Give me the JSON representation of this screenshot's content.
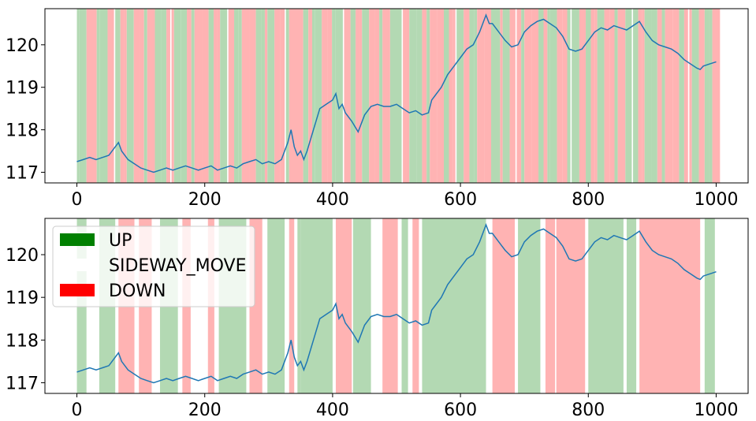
{
  "chart_data": [
    {
      "type": "line",
      "xlim": [
        -50,
        1050
      ],
      "ylim": [
        116.75,
        120.85
      ],
      "xticks": [
        0,
        200,
        400,
        600,
        800,
        1000
      ],
      "yticks": [
        117,
        118,
        119,
        120
      ],
      "xtick_labels": [
        "0",
        "200",
        "400",
        "600",
        "800",
        "1000"
      ],
      "ytick_labels": [
        "117",
        "118",
        "119",
        "120"
      ],
      "background_regions": "dense alternating red / green spans covering 0–1000",
      "series": [
        {
          "color": "#1f77b4",
          "x": [
            0,
            10,
            20,
            30,
            40,
            50,
            60,
            65,
            70,
            80,
            90,
            100,
            110,
            120,
            130,
            140,
            150,
            160,
            170,
            180,
            190,
            200,
            210,
            220,
            230,
            240,
            250,
            260,
            270,
            280,
            290,
            300,
            310,
            320,
            330,
            335,
            340,
            345,
            350,
            355,
            360,
            370,
            380,
            390,
            400,
            405,
            410,
            415,
            420,
            430,
            440,
            450,
            460,
            470,
            480,
            490,
            500,
            510,
            520,
            530,
            540,
            550,
            555,
            560,
            570,
            580,
            590,
            600,
            610,
            620,
            630,
            640,
            645,
            650,
            660,
            670,
            680,
            690,
            700,
            710,
            720,
            730,
            740,
            750,
            760,
            770,
            780,
            790,
            800,
            810,
            820,
            830,
            840,
            850,
            860,
            870,
            880,
            890,
            900,
            910,
            920,
            930,
            940,
            950,
            960,
            970,
            975,
            980,
            990,
            1000
          ],
          "y": [
            117.25,
            117.3,
            117.35,
            117.3,
            117.35,
            117.4,
            117.6,
            117.7,
            117.5,
            117.3,
            117.2,
            117.1,
            117.05,
            117.0,
            117.05,
            117.1,
            117.05,
            117.1,
            117.15,
            117.1,
            117.05,
            117.1,
            117.15,
            117.05,
            117.1,
            117.15,
            117.1,
            117.2,
            117.25,
            117.3,
            117.2,
            117.25,
            117.2,
            117.3,
            117.7,
            118.0,
            117.6,
            117.4,
            117.5,
            117.3,
            117.5,
            118.0,
            118.5,
            118.6,
            118.7,
            118.85,
            118.5,
            118.6,
            118.4,
            118.2,
            117.95,
            118.35,
            118.55,
            118.6,
            118.55,
            118.55,
            118.6,
            118.5,
            118.4,
            118.45,
            118.35,
            118.4,
            118.7,
            118.8,
            119.0,
            119.3,
            119.5,
            119.7,
            119.9,
            120.0,
            120.3,
            120.7,
            120.5,
            120.5,
            120.3,
            120.1,
            119.95,
            120.0,
            120.3,
            120.45,
            120.55,
            120.6,
            120.5,
            120.4,
            120.2,
            119.9,
            119.85,
            119.9,
            120.1,
            120.3,
            120.4,
            120.35,
            120.45,
            120.4,
            120.35,
            120.45,
            120.55,
            120.3,
            120.1,
            120.0,
            119.95,
            119.9,
            119.8,
            119.65,
            119.55,
            119.45,
            119.42,
            119.5,
            119.55,
            119.6
          ]
        }
      ]
    },
    {
      "type": "line",
      "xlim": [
        -50,
        1050
      ],
      "ylim": [
        116.75,
        120.85
      ],
      "xticks": [
        0,
        200,
        400,
        600,
        800,
        1000
      ],
      "yticks": [
        117,
        118,
        119,
        120
      ],
      "xtick_labels": [
        "0",
        "200",
        "400",
        "600",
        "800",
        "1000"
      ],
      "ytick_labels": [
        "117",
        "118",
        "119",
        "120"
      ],
      "legend": {
        "placement": "top-left",
        "entries": [
          {
            "label": "UP",
            "color": "#008000"
          },
          {
            "label": "SIDEWAY_MOVE",
            "color": "#ffffff"
          },
          {
            "label": "DOWN",
            "color": "#ff0000"
          }
        ]
      },
      "regions": [
        {
          "start": 0,
          "end": 15,
          "class": "UP"
        },
        {
          "start": 35,
          "end": 60,
          "class": "UP"
        },
        {
          "start": 65,
          "end": 90,
          "class": "DOWN"
        },
        {
          "start": 97,
          "end": 117,
          "class": "DOWN"
        },
        {
          "start": 130,
          "end": 158,
          "class": "UP"
        },
        {
          "start": 165,
          "end": 178,
          "class": "DOWN"
        },
        {
          "start": 205,
          "end": 215,
          "class": "DOWN"
        },
        {
          "start": 222,
          "end": 265,
          "class": "UP"
        },
        {
          "start": 270,
          "end": 290,
          "class": "DOWN"
        },
        {
          "start": 298,
          "end": 325,
          "class": "UP"
        },
        {
          "start": 332,
          "end": 340,
          "class": "DOWN"
        },
        {
          "start": 345,
          "end": 350,
          "class": "UP"
        },
        {
          "start": 350,
          "end": 400,
          "class": "UP"
        },
        {
          "start": 405,
          "end": 430,
          "class": "DOWN"
        },
        {
          "start": 432,
          "end": 460,
          "class": "UP"
        },
        {
          "start": 478,
          "end": 502,
          "class": "DOWN"
        },
        {
          "start": 508,
          "end": 518,
          "class": "UP"
        },
        {
          "start": 525,
          "end": 535,
          "class": "DOWN"
        },
        {
          "start": 540,
          "end": 640,
          "class": "UP"
        },
        {
          "start": 650,
          "end": 685,
          "class": "DOWN"
        },
        {
          "start": 690,
          "end": 725,
          "class": "UP"
        },
        {
          "start": 733,
          "end": 748,
          "class": "DOWN"
        },
        {
          "start": 750,
          "end": 795,
          "class": "DOWN"
        },
        {
          "start": 800,
          "end": 855,
          "class": "UP"
        },
        {
          "start": 860,
          "end": 875,
          "class": "UP"
        },
        {
          "start": 880,
          "end": 975,
          "class": "DOWN"
        },
        {
          "start": 982,
          "end": 998,
          "class": "UP"
        }
      ],
      "series": [
        {
          "color": "#1f77b4",
          "x": [
            0,
            10,
            20,
            30,
            40,
            50,
            60,
            65,
            70,
            80,
            90,
            100,
            110,
            120,
            130,
            140,
            150,
            160,
            170,
            180,
            190,
            200,
            210,
            220,
            230,
            240,
            250,
            260,
            270,
            280,
            290,
            300,
            310,
            320,
            330,
            335,
            340,
            345,
            350,
            355,
            360,
            370,
            380,
            390,
            400,
            405,
            410,
            415,
            420,
            430,
            440,
            450,
            460,
            470,
            480,
            490,
            500,
            510,
            520,
            530,
            540,
            550,
            555,
            560,
            570,
            580,
            590,
            600,
            610,
            620,
            630,
            640,
            645,
            650,
            660,
            670,
            680,
            690,
            700,
            710,
            720,
            730,
            740,
            750,
            760,
            770,
            780,
            790,
            800,
            810,
            820,
            830,
            840,
            850,
            860,
            870,
            880,
            890,
            900,
            910,
            920,
            930,
            940,
            950,
            960,
            970,
            975,
            980,
            990,
            1000
          ],
          "y": [
            117.25,
            117.3,
            117.35,
            117.3,
            117.35,
            117.4,
            117.6,
            117.7,
            117.5,
            117.3,
            117.2,
            117.1,
            117.05,
            117.0,
            117.05,
            117.1,
            117.05,
            117.1,
            117.15,
            117.1,
            117.05,
            117.1,
            117.15,
            117.05,
            117.1,
            117.15,
            117.1,
            117.2,
            117.25,
            117.3,
            117.2,
            117.25,
            117.2,
            117.3,
            117.7,
            118.0,
            117.6,
            117.4,
            117.5,
            117.3,
            117.5,
            118.0,
            118.5,
            118.6,
            118.7,
            118.85,
            118.5,
            118.6,
            118.4,
            118.2,
            117.95,
            118.35,
            118.55,
            118.6,
            118.55,
            118.55,
            118.6,
            118.5,
            118.4,
            118.45,
            118.35,
            118.4,
            118.7,
            118.8,
            119.0,
            119.3,
            119.5,
            119.7,
            119.9,
            120.0,
            120.3,
            120.7,
            120.5,
            120.5,
            120.3,
            120.1,
            119.95,
            120.0,
            120.3,
            120.45,
            120.55,
            120.6,
            120.5,
            120.4,
            120.2,
            119.9,
            119.85,
            119.9,
            120.1,
            120.3,
            120.4,
            120.35,
            120.45,
            120.4,
            120.35,
            120.45,
            120.55,
            120.3,
            120.1,
            120.0,
            119.95,
            119.9,
            119.8,
            119.65,
            119.55,
            119.45,
            119.42,
            119.5,
            119.55,
            119.6
          ]
        }
      ]
    }
  ],
  "colors": {
    "up_shade": "#b3d9b3",
    "down_shade": "#ffb3b3",
    "line": "#1f77b4"
  }
}
